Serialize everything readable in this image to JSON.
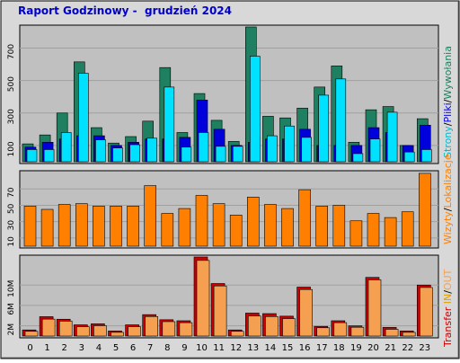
{
  "header": {
    "title": "Raport Godzinowy -  grudzień 2024"
  },
  "colors": {
    "background": "#d8d8d8",
    "plot_background": "#c0c0c0",
    "hits": "#1e8060",
    "files": "#0000dd",
    "pages": "#00e0ff",
    "visits": "#ff8000",
    "kbytes_in": "#cc0000",
    "kbytes_out": "#f4a050",
    "title": "#0000cc"
  },
  "legends": {
    "top": {
      "pages": "Strony",
      "sep1": "/",
      "files": "Pliki",
      "sep2": "/",
      "hits": "Wywołania"
    },
    "middle": {
      "visits": "Wizyty",
      "sep": "/",
      "sites": "Lokalizacje"
    },
    "bottom": {
      "transfer": "Transfer",
      "in": "IN",
      "sep": "/",
      "out": "OUT"
    }
  },
  "chart_data": [
    {
      "type": "bar",
      "panel": "top",
      "categories": [
        "0",
        "1",
        "2",
        "3",
        "4",
        "5",
        "6",
        "7",
        "8",
        "9",
        "10",
        "11",
        "12",
        "13",
        "14",
        "15",
        "16",
        "17",
        "18",
        "19",
        "20",
        "21",
        "22",
        "23"
      ],
      "yticks": [
        "100",
        "300",
        "500",
        "700"
      ],
      "ylim": [
        0,
        830
      ],
      "series": [
        {
          "name": "Wywołania",
          "values": [
            110,
            165,
            300,
            615,
            210,
            115,
            155,
            250,
            580,
            180,
            420,
            255,
            125,
            830,
            280,
            270,
            330,
            460,
            590,
            120,
            320,
            340,
            100,
            265
          ]
        },
        {
          "name": "Pliki",
          "values": [
            90,
            120,
            140,
            160,
            160,
            100,
            120,
            140,
            140,
            150,
            380,
            200,
            100,
            120,
            140,
            140,
            200,
            100,
            100,
            100,
            210,
            180,
            100,
            225
          ]
        },
        {
          "name": "Strony",
          "values": [
            75,
            75,
            180,
            545,
            135,
            85,
            105,
            145,
            460,
            90,
            180,
            95,
            95,
            650,
            160,
            220,
            150,
            410,
            510,
            50,
            140,
            305,
            60,
            75
          ]
        }
      ]
    },
    {
      "type": "bar",
      "panel": "middle",
      "categories": [
        "0",
        "1",
        "2",
        "3",
        "4",
        "5",
        "6",
        "7",
        "8",
        "9",
        "10",
        "11",
        "12",
        "13",
        "14",
        "15",
        "16",
        "17",
        "18",
        "19",
        "20",
        "21",
        "22",
        "23"
      ],
      "yticks": [
        "10",
        "30",
        "50",
        "70"
      ],
      "ylim": [
        0,
        90
      ],
      "series": [
        {
          "name": "Wizyty",
          "values": [
            49,
            45,
            51,
            52,
            49,
            49,
            49,
            74,
            40,
            46,
            62,
            52,
            38,
            60,
            51,
            46,
            69,
            49,
            50,
            31,
            40,
            35,
            42,
            89
          ]
        },
        {
          "name": "Lokalizacje",
          "values": [
            49,
            45,
            51,
            52,
            49,
            49,
            49,
            74,
            40,
            46,
            62,
            52,
            38,
            60,
            51,
            46,
            69,
            49,
            50,
            31,
            40,
            35,
            42,
            89
          ]
        }
      ]
    },
    {
      "type": "bar",
      "panel": "bottom",
      "categories": [
        "0",
        "1",
        "2",
        "3",
        "4",
        "5",
        "6",
        "7",
        "8",
        "9",
        "10",
        "11",
        "12",
        "13",
        "14",
        "15",
        "16",
        "17",
        "18",
        "19",
        "20",
        "21",
        "22",
        "23"
      ],
      "yticks": [
        "2M",
        "6M",
        "10M"
      ],
      "ylim": [
        0,
        15.5
      ],
      "series": [
        {
          "name": "IN",
          "values": [
            1.2,
            3.8,
            3.3,
            2.2,
            2.4,
            1.0,
            2.2,
            4.2,
            3.2,
            3.0,
            15.5,
            10.3,
            1.2,
            4.5,
            4.4,
            3.9,
            9.6,
            1.9,
            3.0,
            2.0,
            11.5,
            1.7,
            1.0,
            10.0
          ]
        },
        {
          "name": "OUT",
          "values": [
            1.1,
            3.5,
            3.1,
            2.0,
            2.2,
            0.9,
            2.0,
            4.0,
            3.0,
            2.8,
            15.0,
            10.0,
            1.1,
            4.1,
            4.0,
            3.6,
            9.3,
            1.8,
            2.8,
            1.9,
            11.2,
            1.5,
            0.9,
            9.7
          ]
        }
      ]
    }
  ]
}
